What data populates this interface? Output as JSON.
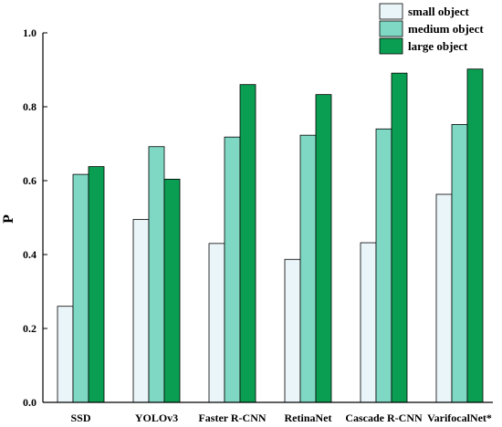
{
  "chart_data": {
    "type": "bar",
    "title": "",
    "xlabel": "",
    "ylabel": "P",
    "ylim": [
      0,
      1.0
    ],
    "yticks": [
      "0.0",
      "0.2",
      "0.4",
      "0.6",
      "0.8",
      "1.0"
    ],
    "grid": false,
    "legend_position": "top-right",
    "categories": [
      "SSD",
      "YOLOv3",
      "Faster R-CNN",
      "RetinaNet",
      "Cascade R-CNN",
      "VarifocalNet*"
    ],
    "series": [
      {
        "name": "small object",
        "color": "#eaf5f9",
        "values": [
          0.26,
          0.495,
          0.43,
          0.387,
          0.432,
          0.563
        ]
      },
      {
        "name": "medium object",
        "color": "#7fd8c3",
        "values": [
          0.617,
          0.692,
          0.718,
          0.723,
          0.74,
          0.752
        ]
      },
      {
        "name": "large object",
        "color": "#0a9e52",
        "values": [
          0.638,
          0.604,
          0.86,
          0.833,
          0.891,
          0.902
        ]
      }
    ]
  }
}
